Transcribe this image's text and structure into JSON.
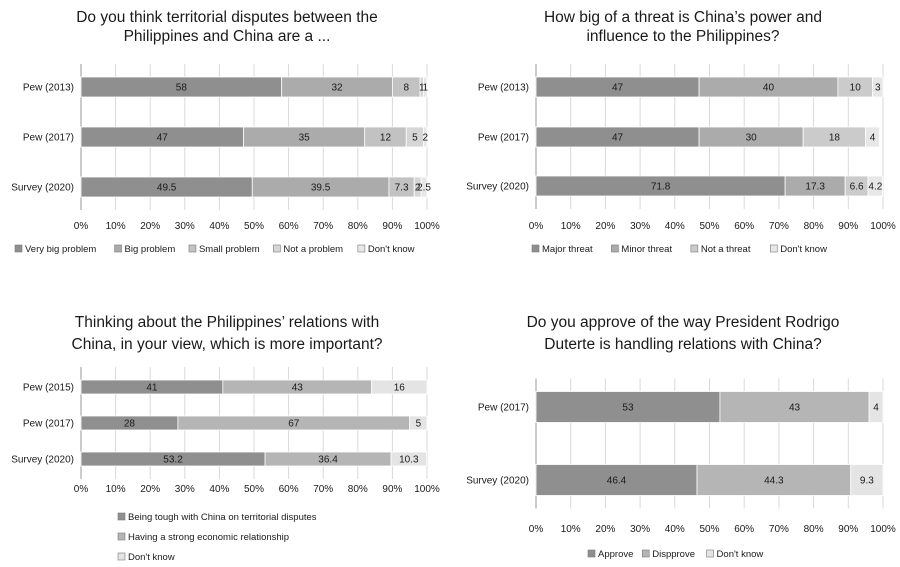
{
  "chart_data": [
    {
      "type": "bar",
      "orientation": "horizontal",
      "stacked": true,
      "title_lines": [
        "Do you think territorial disputes between the",
        "Philippines  and China are a ..."
      ],
      "categories": [
        "Pew (2013)",
        "Pew (2017)",
        "Survey (2020)"
      ],
      "series": [
        {
          "name": "Very big problem",
          "values": [
            58,
            47,
            49.5
          ],
          "labels": [
            "58",
            "47",
            "49.5"
          ],
          "color": "#8f8f8f"
        },
        {
          "name": "Big problem",
          "values": [
            32,
            35,
            39.5
          ],
          "labels": [
            "32",
            "35",
            "39.5"
          ],
          "color": "#ababab"
        },
        {
          "name": "Small problem",
          "values": [
            8,
            12,
            7.3
          ],
          "labels": [
            "8",
            "12",
            "7.3"
          ],
          "color": "#c2c2c2"
        },
        {
          "name": "Not a problem",
          "values": [
            1,
            5,
            2
          ],
          "labels": [
            "1",
            "5",
            "2"
          ],
          "color": "#d6d6d6"
        },
        {
          "name": "Don't know",
          "values": [
            1,
            2,
            2.5
          ],
          "labels": [
            "1",
            "2",
            "2.5"
          ],
          "color": "#e7e7e7"
        }
      ],
      "xlim": [
        0,
        100
      ],
      "ticks": [
        "0%",
        "10%",
        "20%",
        "30%",
        "40%",
        "50%",
        "60%",
        "70%",
        "80%",
        "90%",
        "100%"
      ],
      "grid": true,
      "legend": "bottom"
    },
    {
      "type": "bar",
      "orientation": "horizontal",
      "stacked": true,
      "title_lines": [
        "How big of a threat is China’s power and",
        "influence to the Philippines?"
      ],
      "categories": [
        "Pew (2013)",
        "Pew (2017)",
        "Survey (2020)"
      ],
      "series": [
        {
          "name": "Major threat",
          "values": [
            47,
            47,
            71.8
          ],
          "labels": [
            "47",
            "47",
            "71.8"
          ],
          "color": "#8f8f8f"
        },
        {
          "name": "Minor threat",
          "values": [
            40,
            30,
            17.3
          ],
          "labels": [
            "40",
            "30",
            "17.3"
          ],
          "color": "#ababab"
        },
        {
          "name": "Not a threat",
          "values": [
            10,
            18,
            6.6
          ],
          "labels": [
            "10",
            "18",
            "6.6"
          ],
          "color": "#cbcbcb"
        },
        {
          "name": "Don't know",
          "values": [
            3,
            4,
            4.2
          ],
          "labels": [
            "3",
            "4",
            "4.2"
          ],
          "color": "#e7e7e7"
        }
      ],
      "xlim": [
        0,
        100
      ],
      "ticks": [
        "0%",
        "10%",
        "20%",
        "30%",
        "40%",
        "50%",
        "60%",
        "70%",
        "80%",
        "90%",
        "100%"
      ],
      "grid": true,
      "legend": "bottom"
    },
    {
      "type": "bar",
      "orientation": "horizontal",
      "stacked": true,
      "title_lines": [
        "Thinking about the Philippines’ relations with",
        "China, in your view, which is more important?"
      ],
      "categories": [
        "Pew (2015)",
        "Pew (2017)",
        "Survey (2020)"
      ],
      "series": [
        {
          "name": "Being tough with China on territorial disputes",
          "values": [
            41,
            28,
            53.2
          ],
          "labels": [
            "41",
            "28",
            "53.2"
          ],
          "color": "#8f8f8f"
        },
        {
          "name": "Having a strong economic relationship",
          "values": [
            43,
            67,
            36.4
          ],
          "labels": [
            "43",
            "67",
            "36.4"
          ],
          "color": "#b5b5b5"
        },
        {
          "name": "Don't know",
          "values": [
            16,
            5,
            10.3
          ],
          "labels": [
            "16",
            "5",
            "10.3"
          ],
          "color": "#e4e4e4"
        }
      ],
      "xlim": [
        0,
        100
      ],
      "ticks": [
        "0%",
        "10%",
        "20%",
        "30%",
        "40%",
        "50%",
        "60%",
        "70%",
        "80%",
        "90%",
        "100%"
      ],
      "grid": true,
      "legend": "bottom"
    },
    {
      "type": "bar",
      "orientation": "horizontal",
      "stacked": true,
      "title_lines": [
        "Do you approve of the way President Rodrigo",
        "Duterte is handling relations with China?"
      ],
      "categories": [
        "Pew (2017)",
        "Survey (2020)"
      ],
      "series": [
        {
          "name": "Approve",
          "values": [
            53,
            46.4
          ],
          "labels": [
            "53",
            "46.4"
          ],
          "color": "#8f8f8f"
        },
        {
          "name": "Dispprove",
          "values": [
            43,
            44.3
          ],
          "labels": [
            "43",
            "44.3"
          ],
          "color": "#b5b5b5"
        },
        {
          "name": "Don't know",
          "values": [
            4,
            9.3
          ],
          "labels": [
            "4",
            "9.3"
          ],
          "color": "#e4e4e4"
        }
      ],
      "xlim": [
        0,
        100
      ],
      "ticks": [
        "0%",
        "10%",
        "20%",
        "30%",
        "40%",
        "50%",
        "60%",
        "70%",
        "80%",
        "90%",
        "100%"
      ],
      "grid": true,
      "legend": "bottom"
    }
  ]
}
